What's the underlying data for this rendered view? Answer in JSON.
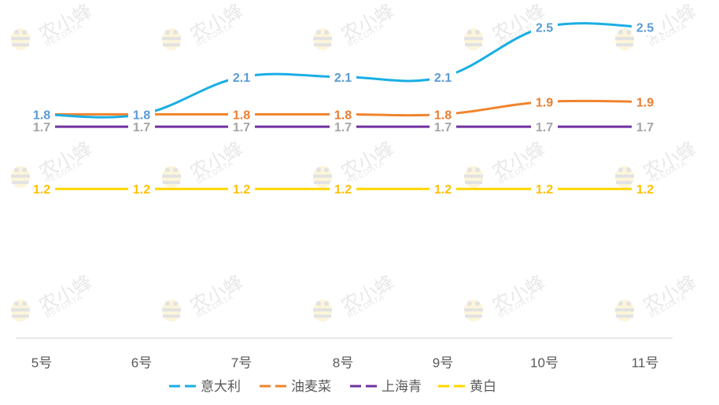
{
  "watermark": {
    "brand": "农小蜂",
    "sub": "BEEDATA"
  },
  "colors": {
    "axis": "#d9d9d9",
    "tick_text": "#595959",
    "legend_text": "#595959"
  },
  "chart_data": {
    "type": "line",
    "smooth": true,
    "categories": [
      "5号",
      "6号",
      "7号",
      "8号",
      "9号",
      "10号",
      "11号"
    ],
    "ylim": [
      0,
      2.7
    ],
    "grid": false,
    "legend_position": "bottom-center",
    "series": [
      {
        "name": "意大利",
        "color": "#1aaee5",
        "label_color": "#5b9bd5",
        "values": [
          1.8,
          1.8,
          2.1,
          2.1,
          2.1,
          2.5,
          2.5
        ]
      },
      {
        "name": "油麦菜",
        "color": "#f0842d",
        "label_color": "#ed7d31",
        "values": [
          1.8,
          1.8,
          1.8,
          1.8,
          1.8,
          1.9,
          1.9
        ]
      },
      {
        "name": "上海青",
        "color": "#7030a0",
        "label_color": "#a5a5a5",
        "values": [
          1.7,
          1.7,
          1.7,
          1.7,
          1.7,
          1.7,
          1.7
        ]
      },
      {
        "name": "黄白",
        "color": "#ffd600",
        "label_color": "#ffc000",
        "values": [
          1.2,
          1.2,
          1.2,
          1.2,
          1.2,
          1.2,
          1.2
        ]
      }
    ]
  }
}
